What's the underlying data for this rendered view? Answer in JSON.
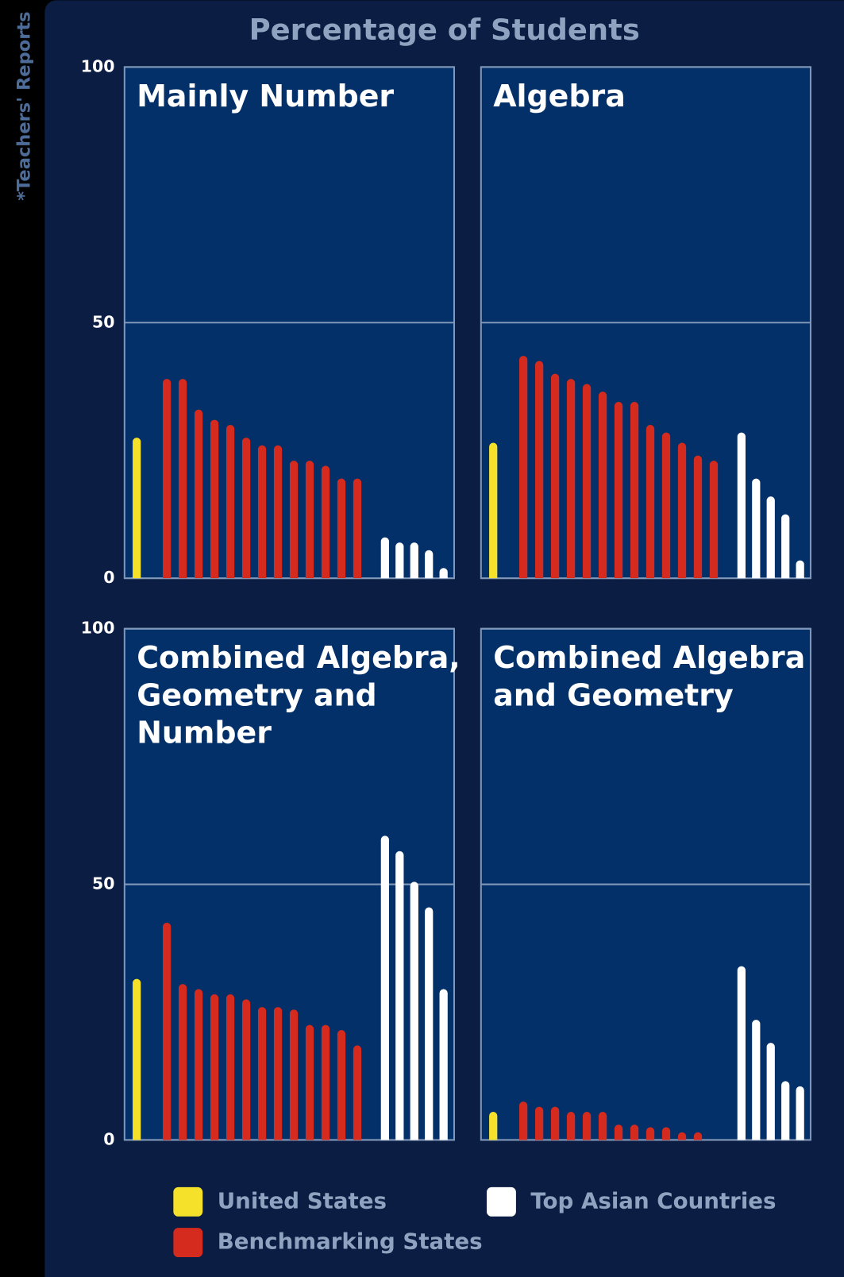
{
  "title": "Percentage of Students",
  "note": "*Teachers' Reports",
  "chart_data": [
    {
      "type": "bar",
      "title": [
        "Mainly Number"
      ],
      "ylim": [
        0,
        100
      ],
      "yticks": [
        0,
        50,
        100
      ],
      "grid": true,
      "series": [
        {
          "name": "United States",
          "color": "#f5e12a",
          "values": [
            27.5
          ]
        },
        {
          "name": "Benchmarking States",
          "color": "#d52b1e",
          "values": [
            39,
            39,
            33,
            31,
            30,
            27.5,
            26,
            26,
            23,
            23,
            22,
            19.5,
            19.5
          ]
        },
        {
          "name": "Top Asian Countries",
          "color": "#ffffff",
          "values": [
            8,
            7,
            7,
            5.5,
            2
          ]
        }
      ]
    },
    {
      "type": "bar",
      "title": [
        "Algebra"
      ],
      "ylim": [
        0,
        100
      ],
      "yticks": [
        0,
        50,
        100
      ],
      "grid": true,
      "series": [
        {
          "name": "United States",
          "color": "#f5e12a",
          "values": [
            26.5
          ]
        },
        {
          "name": "Benchmarking States",
          "color": "#d52b1e",
          "values": [
            43.5,
            42.5,
            40,
            39,
            38,
            36.5,
            34.5,
            34.5,
            30,
            28.5,
            26.5,
            24,
            23
          ]
        },
        {
          "name": "Top Asian Countries",
          "color": "#ffffff",
          "values": [
            28.5,
            19.5,
            16,
            12.5,
            3.5
          ]
        }
      ]
    },
    {
      "type": "bar",
      "title": [
        "Combined Algebra,",
        "Geometry and",
        "Number"
      ],
      "ylim": [
        0,
        100
      ],
      "yticks": [
        0,
        50,
        100
      ],
      "grid": true,
      "series": [
        {
          "name": "United States",
          "color": "#f5e12a",
          "values": [
            31.5
          ]
        },
        {
          "name": "Benchmarking States",
          "color": "#d52b1e",
          "values": [
            42.5,
            30.5,
            29.5,
            28.5,
            28.5,
            27.5,
            26,
            26,
            25.5,
            22.5,
            22.5,
            21.5,
            18.5
          ]
        },
        {
          "name": "Top Asian Countries",
          "color": "#ffffff",
          "values": [
            59.5,
            56.5,
            50.5,
            45.5,
            29.5
          ]
        }
      ]
    },
    {
      "type": "bar",
      "title": [
        "Combined Algebra",
        "and Geometry"
      ],
      "ylim": [
        0,
        100
      ],
      "yticks": [
        0,
        50,
        100
      ],
      "grid": true,
      "series": [
        {
          "name": "United States",
          "color": "#f5e12a",
          "values": [
            5.5
          ]
        },
        {
          "name": "Benchmarking States",
          "color": "#d52b1e",
          "values": [
            7.5,
            6.5,
            6.5,
            5.5,
            5.5,
            5.5,
            3,
            3,
            2.5,
            2.5,
            1.5,
            1.5
          ]
        },
        {
          "name": "Top Asian Countries",
          "color": "#ffffff",
          "values": [
            34,
            23.5,
            19,
            11.5,
            10.5
          ]
        }
      ]
    }
  ]
}
